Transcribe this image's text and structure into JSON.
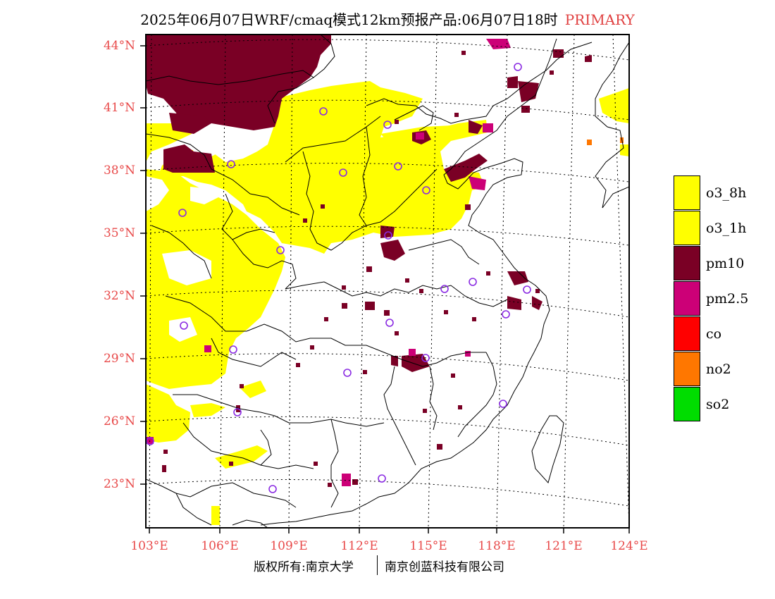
{
  "title": {
    "main": "2025年06月07日WRF/cmaq模式12km预报产品:06月07日18时",
    "tag": "PRIMARY"
  },
  "lat_labels": [
    "44°N",
    "41°N",
    "38°N",
    "35°N",
    "32°N",
    "29°N",
    "26°N",
    "23°N"
  ],
  "lon_labels": [
    "103°E",
    "106°E",
    "109°E",
    "112°E",
    "115°E",
    "118°E",
    "121°E",
    "124°E"
  ],
  "legend": [
    {
      "label": "o3_8h",
      "color": "#ffff00"
    },
    {
      "label": "o3_1h",
      "color": "#ffff00"
    },
    {
      "label": "pm10",
      "color": "#7a0025"
    },
    {
      "label": "pm2.5",
      "color": "#cc0077"
    },
    {
      "label": "co",
      "color": "#ff0000"
    },
    {
      "label": "no2",
      "color": "#ff7700"
    },
    {
      "label": "so2",
      "color": "#00dd00"
    }
  ],
  "footer": {
    "left": "版权所有:南京大学",
    "right": "南京创蓝科技有限公司"
  }
}
